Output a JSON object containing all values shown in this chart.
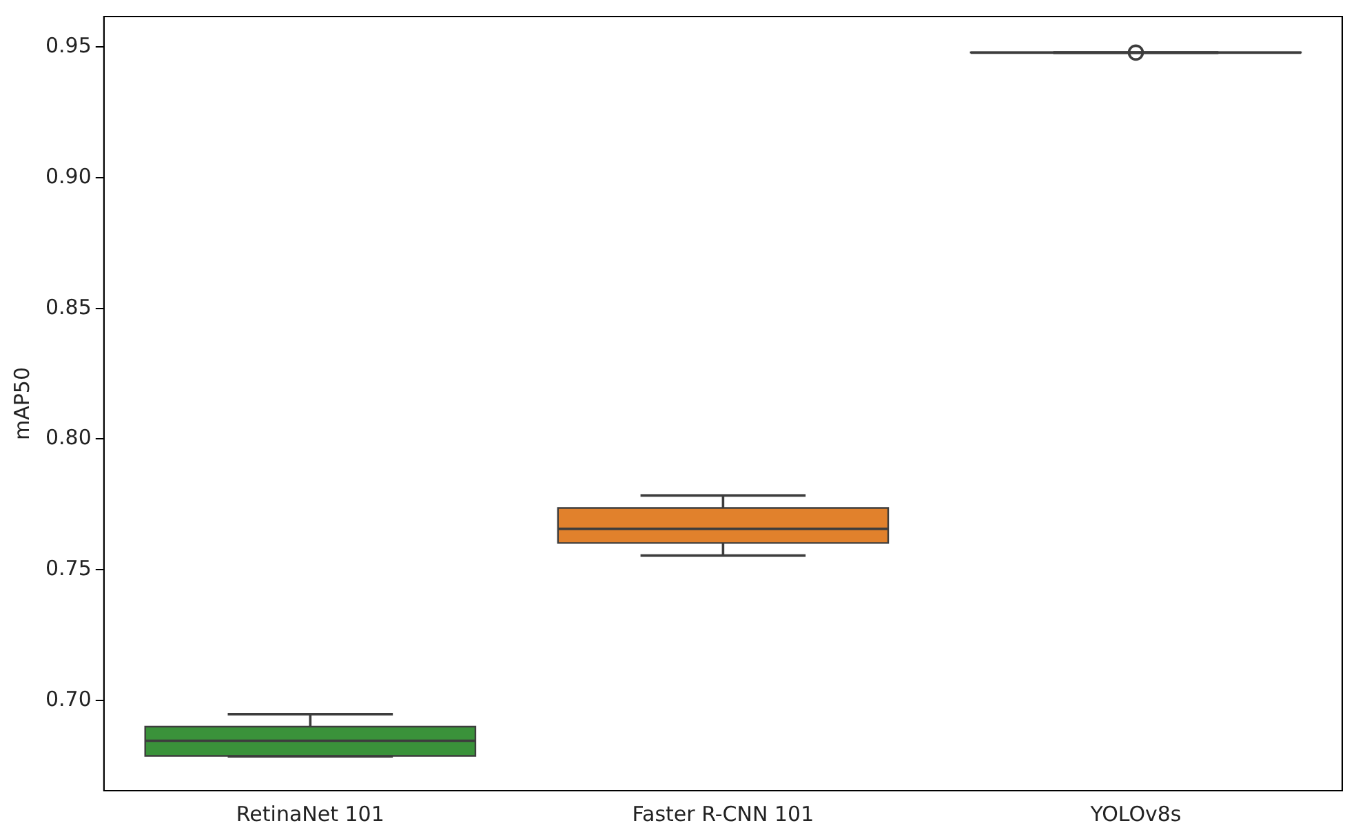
{
  "chart_data": {
    "type": "box",
    "ylabel": "mAP50",
    "categories": [
      "RetinaNet 101",
      "Faster R-CNN 101",
      "YOLOv8s"
    ],
    "colors": [
      "#3a923a",
      "#e1812c",
      "#3274a1"
    ],
    "boxes": [
      {
        "low": 0.6785,
        "q1": 0.6787,
        "median": 0.6845,
        "q3": 0.6899,
        "high": 0.6947
      },
      {
        "low": 0.7554,
        "q1": 0.7602,
        "median": 0.7656,
        "q3": 0.7736,
        "high": 0.7784
      },
      {
        "low": 0.9478,
        "q1": 0.9479,
        "median": 0.9479,
        "q3": 0.948,
        "high": 0.948,
        "outliers": [
          0.9479
        ]
      }
    ],
    "ylim": [
      0.6654,
      0.9617
    ],
    "yticks": [
      {
        "value": 0.7,
        "label": "0.70"
      },
      {
        "value": 0.75,
        "label": "0.75"
      },
      {
        "value": 0.8,
        "label": "0.80"
      },
      {
        "value": 0.85,
        "label": "0.85"
      },
      {
        "value": 0.9,
        "label": "0.90"
      },
      {
        "value": 0.95,
        "label": "0.95"
      }
    ],
    "grid": false
  }
}
